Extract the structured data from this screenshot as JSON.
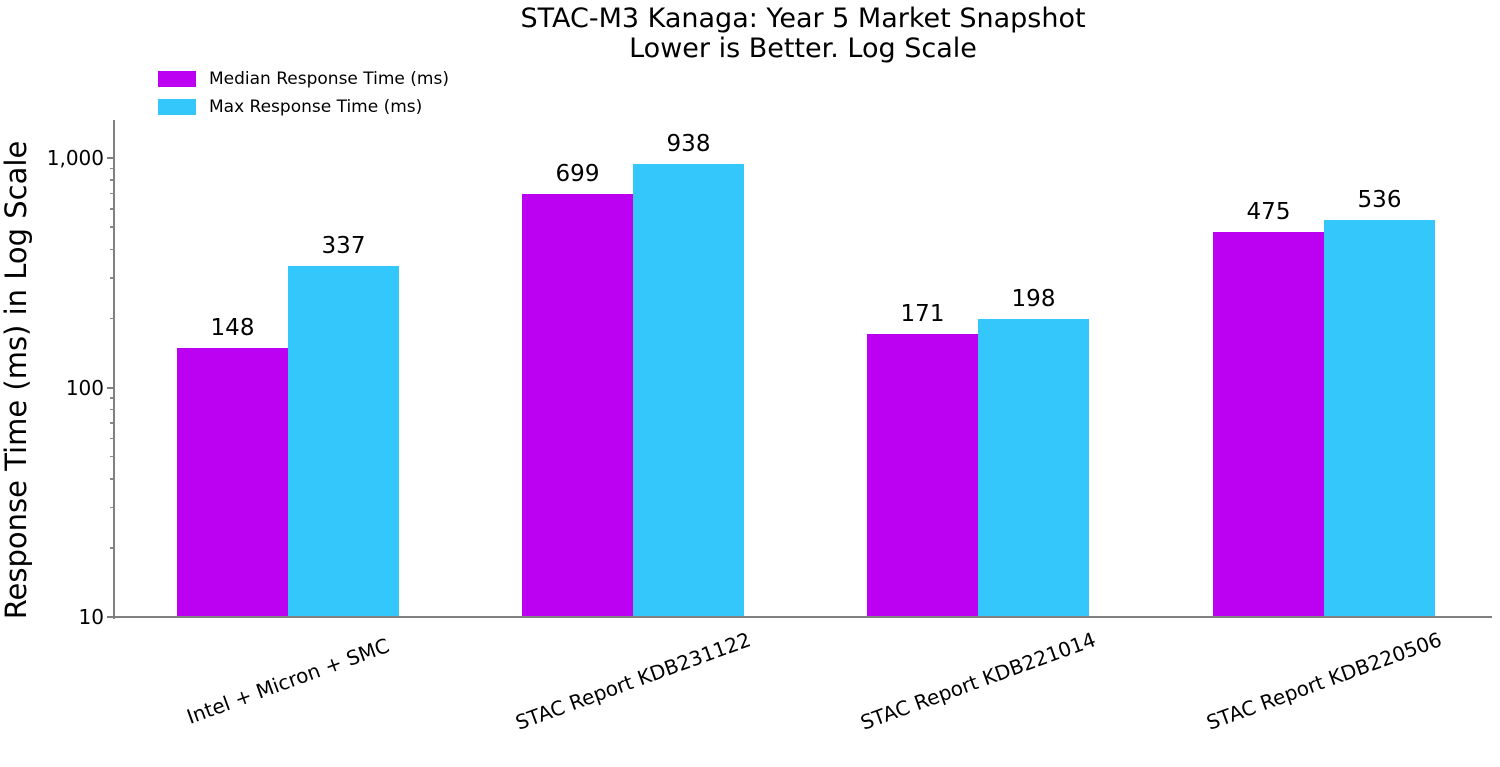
{
  "title": {
    "line1": "STAC-M3 Kanaga: Year 5 Market Snapshot",
    "line2": "Lower is Better. Log Scale"
  },
  "ylabel": "Response Time (ms) in Log Scale",
  "chart_data": {
    "type": "bar",
    "yscale": "log",
    "title": "STAC-M3 Kanaga: Year 5 Market Snapshot",
    "subtitle": "Lower is Better. Log Scale",
    "ylabel": "Response Time (ms) in Log Scale",
    "xlabel": "",
    "categories": [
      "Intel + Micron + SMC",
      "STAC Report KDB231122",
      "STAC Report KDB221014",
      "STAC Report KDB220506"
    ],
    "series": [
      {
        "name": "Median Response Time (ms)",
        "color": "#BC00F2",
        "values": [
          148,
          699,
          171,
          475
        ]
      },
      {
        "name": "Max Response Time (ms)",
        "color": "#33C7FB",
        "values": [
          337,
          938,
          198,
          536
        ]
      }
    ],
    "bar_value_labels": [
      [
        "148",
        "699",
        "171",
        "475"
      ],
      [
        "337",
        "938",
        "198",
        "536"
      ]
    ],
    "ylim": [
      10,
      1450
    ],
    "yticks": [
      {
        "value": 10,
        "label": "10"
      },
      {
        "value": 100,
        "label": "100"
      },
      {
        "value": 1000,
        "label": "1,000"
      }
    ],
    "minor_ticks": true,
    "grid": false,
    "legend_position": "upper left",
    "axis_color": "#808080",
    "text_color": "#000000",
    "background_color": "#ffffff"
  }
}
